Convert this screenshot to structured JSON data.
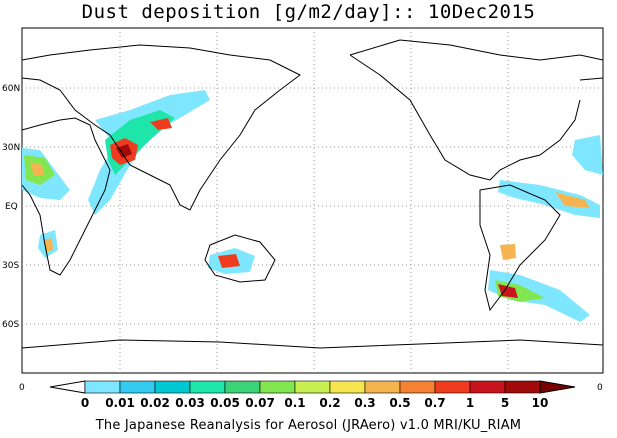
{
  "title": "Dust deposition [g/m2/day]:: 10Dec2015",
  "lat_labels": [
    "60N",
    "30N",
    "EQ",
    "30S",
    "60S"
  ],
  "colorbar": {
    "ticks": [
      "0",
      "0.01",
      "0.02",
      "0.03",
      "0.05",
      "0.07",
      "0.1",
      "0.2",
      "0.3",
      "0.5",
      "0.7",
      "1",
      "5",
      "10"
    ],
    "colors": [
      "#ffffff",
      "#7fe6ff",
      "#33ccf0",
      "#00c8d2",
      "#1ee6aa",
      "#3cd278",
      "#82e650",
      "#c8f050",
      "#f5e650",
      "#f5b450",
      "#f58232",
      "#f03c1e",
      "#c8141e",
      "#a00a0a",
      "#780000"
    ],
    "left_end": "0",
    "right_end": "0"
  },
  "footer": "The Japanese Reanalysis for Aerosol (JRAero) v1.0 MRI/KU_RIAM"
}
